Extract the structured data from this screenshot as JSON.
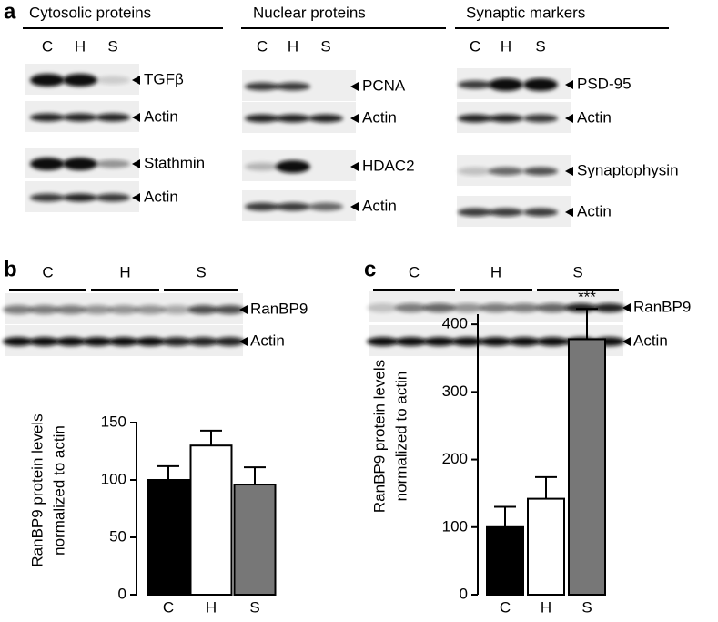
{
  "panels": {
    "a": {
      "letter": "a",
      "groups": [
        {
          "title": "Cytosolic proteins",
          "lanes": [
            "C",
            "H",
            "S"
          ],
          "bands": [
            "TGFβ",
            "Actin",
            "Stathmin",
            "Actin"
          ]
        },
        {
          "title": "Nuclear proteins",
          "lanes": [
            "C",
            "H",
            "S"
          ],
          "bands": [
            "PCNA",
            "Actin",
            "HDAC2",
            "Actin"
          ]
        },
        {
          "title": "Synaptic markers",
          "lanes": [
            "C",
            "H",
            "S"
          ],
          "bands": [
            "PSD-95",
            "Actin",
            "Synaptophysin",
            "Actin"
          ]
        }
      ]
    },
    "b": {
      "letter": "b",
      "lanes": [
        "C",
        "H",
        "S"
      ],
      "bands": [
        "RanBP9",
        "Actin"
      ]
    },
    "c": {
      "letter": "c",
      "lanes": [
        "C",
        "H",
        "S"
      ],
      "bands": [
        "RanBP9",
        "Actin"
      ]
    }
  },
  "chart_data": [
    {
      "type": "bar",
      "ylabel": [
        "RanBP9 protein levels",
        "normalized to actin"
      ],
      "categories": [
        "C",
        "H",
        "S"
      ],
      "values": [
        100,
        130,
        96
      ],
      "errors": [
        12,
        13,
        15
      ],
      "colors": [
        "#000000",
        "#ffffff",
        "#777777"
      ],
      "ylim": [
        0,
        150
      ],
      "yticks": [
        0,
        50,
        100,
        150
      ]
    },
    {
      "type": "bar",
      "ylabel": [
        "RanBP9 protein levels",
        "normalized to actin"
      ],
      "categories": [
        "C",
        "H",
        "S"
      ],
      "values": [
        100,
        142,
        378
      ],
      "errors": [
        30,
        32,
        45
      ],
      "colors": [
        "#000000",
        "#ffffff",
        "#777777"
      ],
      "ylim": [
        0,
        415
      ],
      "yticks": [
        0,
        100,
        200,
        300,
        400
      ],
      "annotations": [
        {
          "category": 2,
          "text": "***"
        }
      ]
    }
  ]
}
